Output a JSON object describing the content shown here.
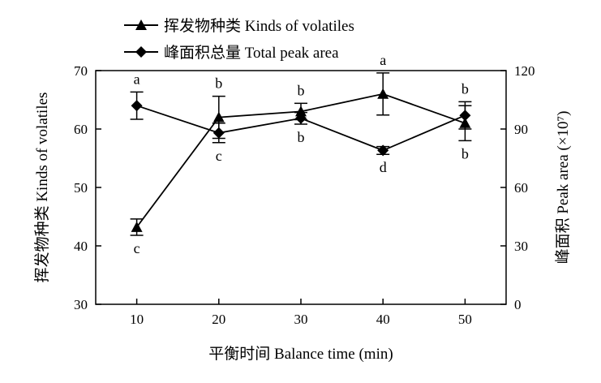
{
  "chart_data": {
    "type": "line",
    "x": [
      10,
      20,
      30,
      40,
      50
    ],
    "xlabel": "平衡时间 Balance time (min)",
    "ylabel_left": "挥发物种类 Kinds of volatiles",
    "ylabel_right": "峰面积 Peak area (×10⁷)",
    "ylim_left": [
      30,
      70
    ],
    "ylim_right": [
      0,
      120
    ],
    "xlim": [
      5,
      55
    ],
    "x_ticks": [
      "10",
      "20",
      "30",
      "40",
      "50"
    ],
    "y_ticks_left": [
      "30",
      "40",
      "50",
      "60",
      "70"
    ],
    "y_ticks_right": [
      "0",
      "30",
      "60",
      "90",
      "120"
    ],
    "grid": false,
    "legend_position": "top",
    "series": [
      {
        "name": "挥发物种类 Kinds of volatiles",
        "axis": "left",
        "marker": "triangle",
        "values": [
          43.2,
          62.0,
          63.0,
          66.0,
          61.0
        ],
        "errors": [
          1.4,
          3.6,
          1.4,
          3.6,
          3.0
        ],
        "letters": [
          "c",
          "b",
          "b",
          "a",
          "b"
        ]
      },
      {
        "name": "峰面积总量 Total peak area",
        "axis": "right",
        "marker": "diamond",
        "values": [
          102.0,
          88.0,
          95.5,
          79.0,
          97.0
        ],
        "errors": [
          7.0,
          5.0,
          3.0,
          2.0,
          7.0
        ],
        "letters": [
          "a",
          "c",
          "b",
          "d",
          "b"
        ]
      }
    ]
  }
}
